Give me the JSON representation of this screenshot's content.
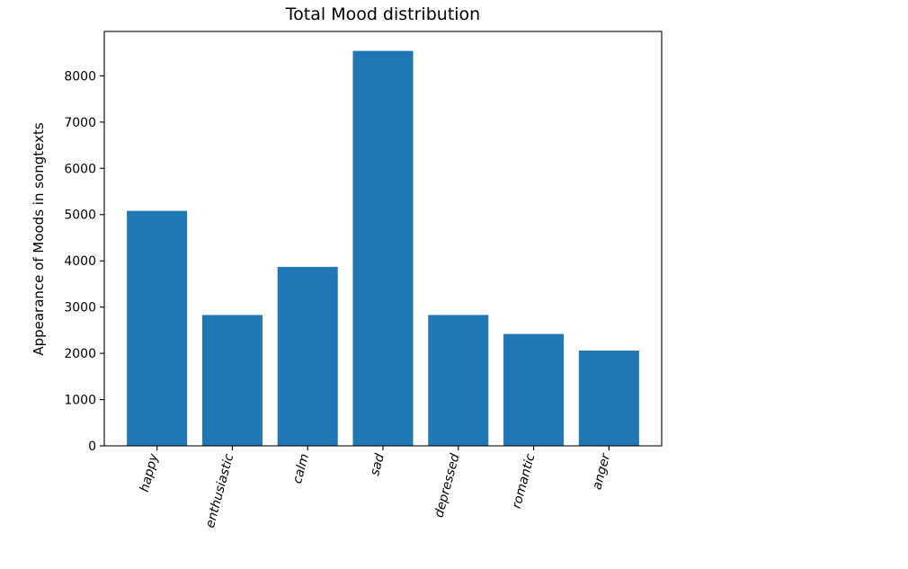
{
  "chart_data": {
    "type": "bar",
    "title": "Total Mood distribution",
    "xlabel": "",
    "ylabel": "Appearance of Moods in songtexts",
    "categories": [
      "happy",
      "enthusiastic",
      "calm",
      "sad",
      "depressed",
      "romantic",
      "anger"
    ],
    "values": [
      5080,
      2830,
      3870,
      8540,
      2830,
      2420,
      2060
    ],
    "ylim": [
      0,
      8960
    ],
    "yticks": [
      0,
      1000,
      2000,
      3000,
      4000,
      5000,
      6000,
      7000,
      8000
    ],
    "ytick_labels": [
      "0",
      "1000",
      "2000",
      "3000",
      "4000",
      "5000",
      "6000",
      "7000",
      "8000"
    ],
    "bar_color": "#1f77b4",
    "category_label_rotation_deg": -75,
    "grid": false,
    "legend": false
  }
}
